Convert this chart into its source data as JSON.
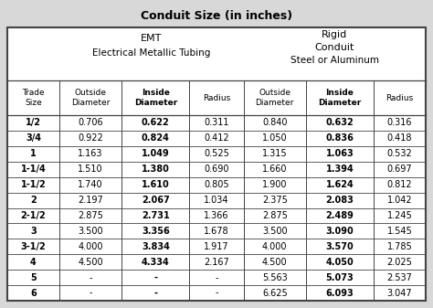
{
  "title": "Conduit Size (in inches)",
  "emt_header1": "EMT",
  "emt_header2": "Electrical Metallic Tubing",
  "rigid_header1": "Rigid",
  "rigid_header2": "Conduit",
  "rigid_header3": "Steel or Aluminum",
  "trade_sizes": [
    "1/2",
    "3/4",
    "1",
    "1-1/4",
    "1-1/2",
    "2",
    "2-1/2",
    "3",
    "3-1/2",
    "4",
    "5",
    "6"
  ],
  "emt_data": [
    [
      "0.706",
      "0.622",
      "0.311"
    ],
    [
      "0.922",
      "0.824",
      "0.412"
    ],
    [
      "1.163",
      "1.049",
      "0.525"
    ],
    [
      "1.510",
      "1.380",
      "0.690"
    ],
    [
      "1.740",
      "1.610",
      "0.805"
    ],
    [
      "2.197",
      "2.067",
      "1.034"
    ],
    [
      "2.875",
      "2.731",
      "1.366"
    ],
    [
      "3.500",
      "3.356",
      "1.678"
    ],
    [
      "4.000",
      "3.834",
      "1.917"
    ],
    [
      "4.500",
      "4.334",
      "2.167"
    ],
    [
      "-",
      "-",
      "-"
    ],
    [
      "-",
      "-",
      "-"
    ]
  ],
  "rigid_data": [
    [
      "0.840",
      "0.632",
      "0.316"
    ],
    [
      "1.050",
      "0.836",
      "0.418"
    ],
    [
      "1.315",
      "1.063",
      "0.532"
    ],
    [
      "1.660",
      "1.394",
      "0.697"
    ],
    [
      "1.900",
      "1.624",
      "0.812"
    ],
    [
      "2.375",
      "2.083",
      "1.042"
    ],
    [
      "2.875",
      "2.489",
      "1.245"
    ],
    [
      "3.500",
      "3.090",
      "1.545"
    ],
    [
      "4.000",
      "3.570",
      "1.785"
    ],
    [
      "4.500",
      "4.050",
      "2.025"
    ],
    [
      "5.563",
      "5.073",
      "2.537"
    ],
    [
      "6.625",
      "6.093",
      "3.047"
    ]
  ],
  "bg_color": "#d8d8d8",
  "table_bg": "#ffffff",
  "border_color": "#444444",
  "text_color": "#000000",
  "figsize": [
    4.74,
    3.37
  ],
  "dpi": 100
}
